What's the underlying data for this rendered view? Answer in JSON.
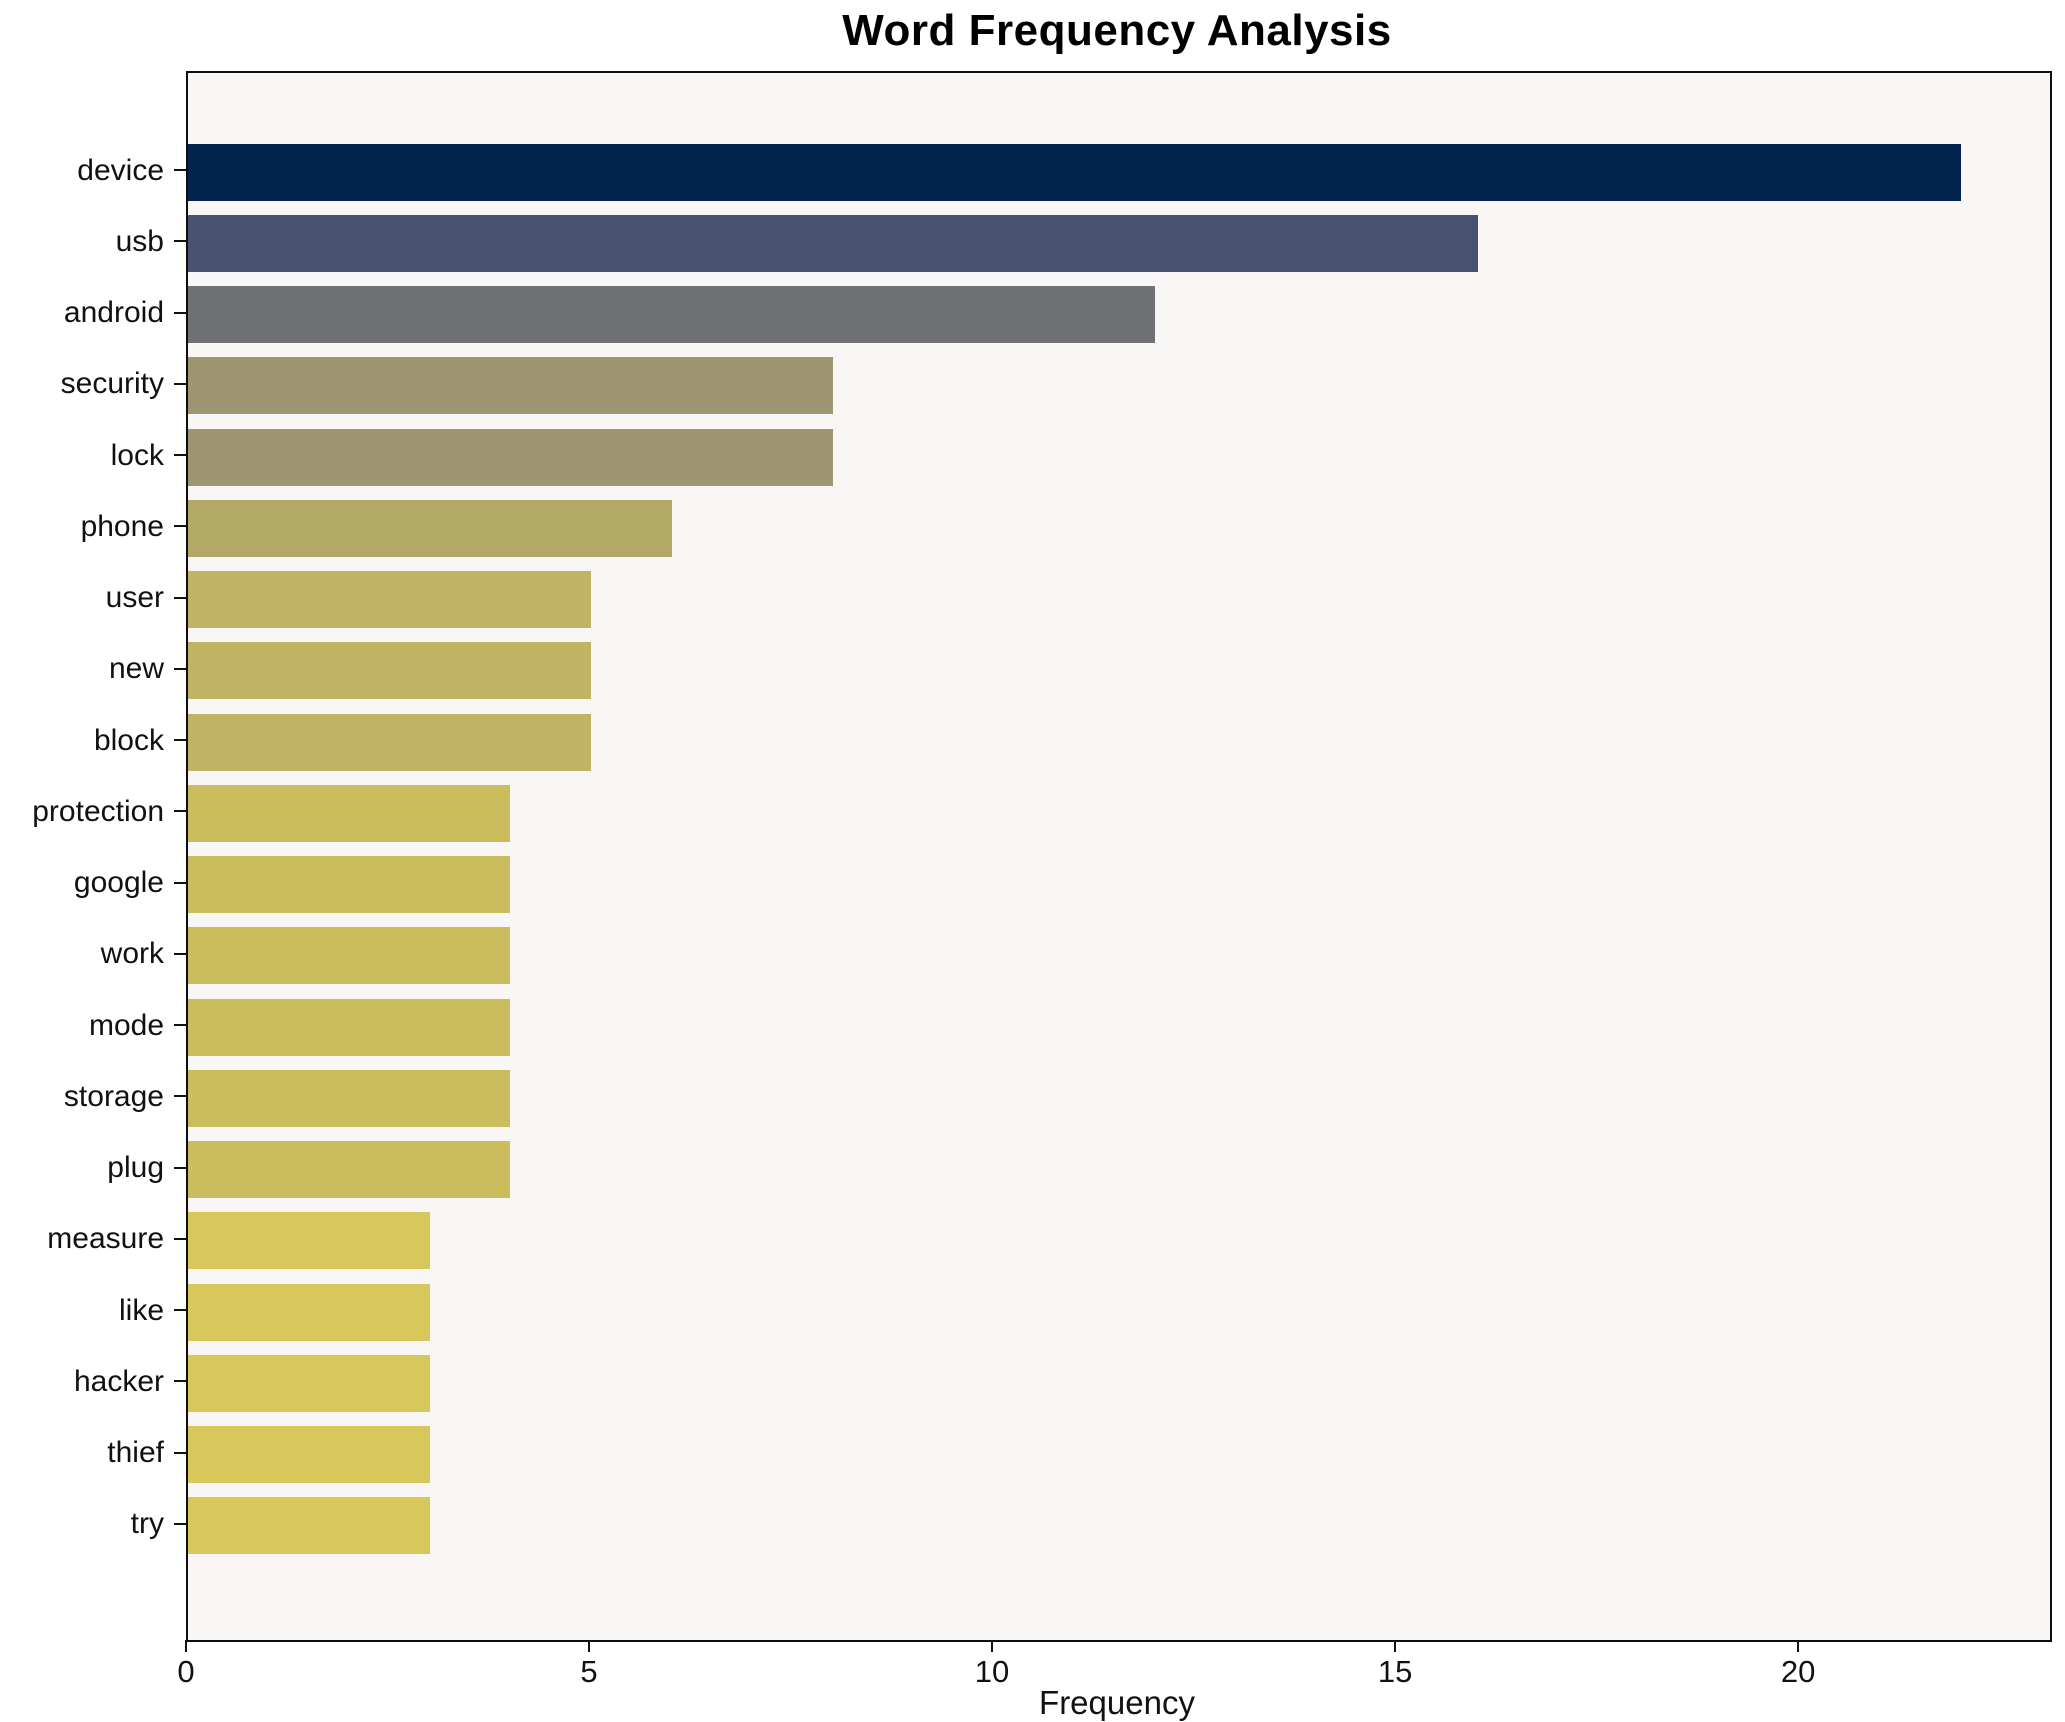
{
  "title": "Word Frequency Analysis",
  "x_axis_label": "Frequency",
  "chart_data": {
    "type": "bar",
    "orientation": "horizontal",
    "title": "Word Frequency Analysis",
    "xlabel": "Frequency",
    "ylabel": "",
    "categories": [
      "device",
      "usb",
      "android",
      "security",
      "lock",
      "phone",
      "user",
      "new",
      "block",
      "protection",
      "google",
      "work",
      "mode",
      "storage",
      "plug",
      "measure",
      "like",
      "hacker",
      "thief",
      "try"
    ],
    "values": [
      22,
      16,
      12,
      8,
      8,
      6,
      5,
      5,
      5,
      4,
      4,
      4,
      4,
      4,
      4,
      3,
      3,
      3,
      3,
      3
    ],
    "bar_colors": [
      "#03234f",
      "#485270",
      "#707174",
      "#9e9572",
      "#9e9572",
      "#b2a967",
      "#c0b364",
      "#c0b364",
      "#c0b364",
      "#cbbc5e",
      "#cbbc5e",
      "#cbbc5e",
      "#cbbc5e",
      "#cbbc5e",
      "#cbbc5e",
      "#d8c75a",
      "#d8c75a",
      "#d8c75a",
      "#d8c75a",
      "#d8c75a"
    ],
    "x_ticks": [
      0,
      5,
      10,
      15,
      20
    ],
    "xlim": [
      0,
      23.1
    ],
    "grid": false,
    "legend": "none",
    "colormap": "cividis-reversed-by-value",
    "plot_background": "#f8f7f6",
    "figure_background": "#ffffff",
    "spine_color": "#0d0d0d"
  }
}
